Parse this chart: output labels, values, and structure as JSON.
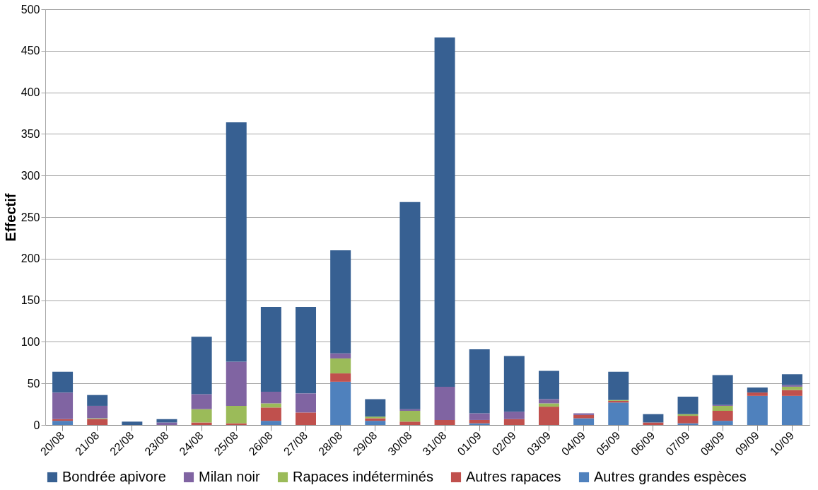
{
  "chart_data": {
    "type": "bar",
    "stacked": true,
    "ylabel": "Effectif",
    "categories": [
      "20/08",
      "21/08",
      "22/08",
      "23/08",
      "24/08",
      "25/08",
      "26/08",
      "27/08",
      "28/08",
      "29/08",
      "30/08",
      "31/08",
      "01/09",
      "02/09",
      "03/09",
      "04/09",
      "05/09",
      "06/09",
      "07/09",
      "08/09",
      "09/09",
      "10/09"
    ],
    "series": [
      {
        "name": "Autres grandes espèces",
        "color": "#4f81bd",
        "values": [
          5,
          0,
          0,
          0,
          0,
          0,
          5,
          0,
          52,
          5,
          0,
          0,
          2,
          0,
          0,
          8,
          27,
          0,
          2,
          5,
          35,
          35
        ]
      },
      {
        "name": "Autres rapaces",
        "color": "#c0504d",
        "values": [
          2,
          7,
          0,
          0,
          3,
          2,
          16,
          15,
          10,
          3,
          4,
          6,
          4,
          7,
          22,
          4,
          2,
          3,
          9,
          12,
          4,
          7
        ]
      },
      {
        "name": "Rapaces indéterminés",
        "color": "#9bbb59",
        "values": [
          0,
          1,
          0,
          0,
          16,
          21,
          5,
          0,
          18,
          2,
          13,
          0,
          0,
          0,
          4,
          0,
          1,
          0,
          2,
          6,
          0,
          4
        ]
      },
      {
        "name": "Milan noir",
        "color": "#8064a2",
        "values": [
          32,
          15,
          0,
          3,
          18,
          53,
          14,
          23,
          6,
          0,
          2,
          40,
          8,
          9,
          5,
          2,
          0,
          0,
          0,
          1,
          0,
          2
        ]
      },
      {
        "name": "Bondrée apivore",
        "color": "#376092",
        "values": [
          25,
          13,
          4,
          4,
          69,
          288,
          102,
          104,
          124,
          21,
          249,
          420,
          77,
          67,
          34,
          0,
          34,
          10,
          21,
          36,
          6,
          13
        ]
      }
    ],
    "ylim": [
      0,
      500
    ],
    "yticks": [
      0,
      50,
      100,
      150,
      200,
      250,
      300,
      350,
      400,
      450,
      500
    ],
    "grid": "y",
    "legend": "bottom"
  }
}
